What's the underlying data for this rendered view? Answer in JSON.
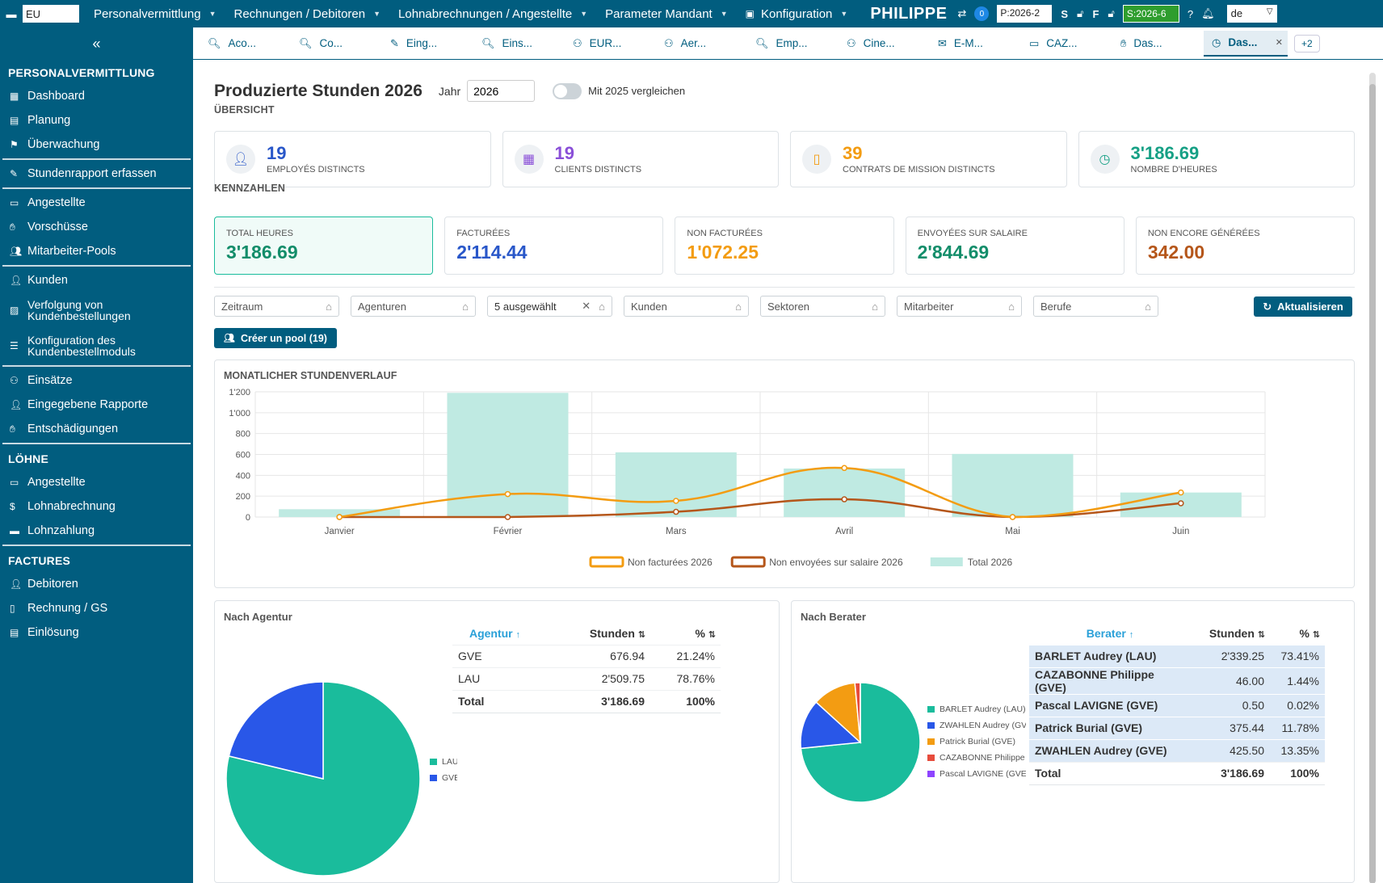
{
  "topbar": {
    "company_input": "EU",
    "menus": [
      {
        "label": "Personalvermittlung"
      },
      {
        "label": "Rechnungen / Debitoren"
      },
      {
        "label": "Lohnabrechnungen / Angestellte"
      },
      {
        "label": "Parameter Mandant"
      },
      {
        "label": "Konfiguration"
      }
    ],
    "brand": "PHILIPPE",
    "notif_count": "0",
    "period_p": "P:2026-2",
    "letter_s": "S",
    "letter_f": "F",
    "period_s": "S:2026-6",
    "language": "de"
  },
  "sidebar": {
    "collapse": "«",
    "sections": {
      "personal": "PERSONALVERMITTLUNG",
      "loehne": "LÖHNE",
      "factures": "FACTURES"
    },
    "items": {
      "dashboard": "Dashboard",
      "planung": "Planung",
      "ueberwachung": "Überwachung",
      "stundenrapport": "Stundenrapport erfassen",
      "angestellte": "Angestellte",
      "vorschuesse": "Vorschüsse",
      "pools": "Mitarbeiter-Pools",
      "kunden": "Kunden",
      "verfolgung": "Verfolgung von Kundenbestellungen",
      "konfiguration": "Konfiguration des Kundenbestellmoduls",
      "einsaetze": "Einsätze",
      "rapporte": "Eingegebene Rapporte",
      "entschaedigungen": "Entschädigungen",
      "angestellte2": "Angestellte",
      "lohnabrechnung": "Lohnabrechnung",
      "lohnzahlung": "Lohnzahlung",
      "debitoren": "Debitoren",
      "rechnung": "Rechnung / GS",
      "einloesung": "Einlösung"
    }
  },
  "tabs": [
    {
      "label": "Aco...",
      "icon": "search-icon"
    },
    {
      "label": "Co...",
      "icon": "search-icon"
    },
    {
      "label": "Eing...",
      "icon": "pencil-icon"
    },
    {
      "label": "Eins...",
      "icon": "search-icon"
    },
    {
      "label": "EUR...",
      "icon": "binoculars-icon"
    },
    {
      "label": "Aer...",
      "icon": "binoculars-icon"
    },
    {
      "label": "Emp...",
      "icon": "search-icon"
    },
    {
      "label": "Cine...",
      "icon": "binoculars-icon"
    },
    {
      "label": "E-M...",
      "icon": "envelope-icon"
    },
    {
      "label": "CAZ...",
      "icon": "id-card-icon"
    },
    {
      "label": "Das...",
      "icon": "hand-coin-icon"
    },
    {
      "label": "Das...",
      "icon": "clock-icon"
    }
  ],
  "tabs_more": "+2",
  "page": {
    "title": "Produzierte Stunden 2026",
    "year_label": "Jahr",
    "year_value": "2026",
    "compare_label": "Mit 2025 vergleichen"
  },
  "overview": {
    "label": "ÜBERSICHT",
    "cards": [
      {
        "value": "19",
        "caption": "EMPLOYÉS DISTINCTS",
        "color": "#2957c9"
      },
      {
        "value": "19",
        "caption": "CLIENTS DISTINCTS",
        "color": "#8a4fd8"
      },
      {
        "value": "39",
        "caption": "CONTRATS DE MISSION DISTINCTS",
        "color": "#f39c12"
      },
      {
        "value": "3'186.69",
        "caption": "NOMBRE D'HEURES",
        "color": "#16a085"
      }
    ]
  },
  "kennzahlen": {
    "label": "KENNZAHLEN",
    "cards": [
      {
        "caption": "TOTAL HEURES",
        "value": "3'186.69",
        "color": "#138d6a"
      },
      {
        "caption": "FACTURÉES",
        "value": "2'114.44",
        "color": "#2957c9"
      },
      {
        "caption": "NON FACTURÉES",
        "value": "1'072.25",
        "color": "#f39c12"
      },
      {
        "caption": "ENVOYÉES SUR SALAIRE",
        "value": "2'844.69",
        "color": "#138d6a"
      },
      {
        "caption": "NON ENCORE GÉNÉRÉES",
        "value": "342.00",
        "color": "#b5561a"
      }
    ]
  },
  "filters": {
    "zeitraum": "Zeitraum",
    "agenturen": "Agenturen",
    "selected": "5 ausgewählt",
    "kunden": "Kunden",
    "sektoren": "Sektoren",
    "mitarbeiter": "Mitarbeiter",
    "berufe": "Berufe",
    "refresh": "Aktualisieren",
    "pool": "Créer un pool (19)"
  },
  "chart_data": [
    {
      "type": "bar",
      "title": "MONATLICHER STUNDENVERLAUF",
      "categories": [
        "Janvier",
        "Février",
        "Mars",
        "Avril",
        "Mai",
        "Juin"
      ],
      "ylim": [
        0,
        1200
      ],
      "yticks": [
        "0",
        "200",
        "400",
        "600",
        "800",
        "1'000",
        "1'200"
      ],
      "grid": true,
      "legend_position": "bottom",
      "series": [
        {
          "name": "Non facturées 2026",
          "kind": "line",
          "color": "#f39c12",
          "values": [
            0,
            220,
            155,
            470,
            0,
            235
          ]
        },
        {
          "name": "Non envoyées sur salaire 2026",
          "kind": "line",
          "color": "#b5561a",
          "values": [
            0,
            0,
            50,
            170,
            0,
            132
          ]
        },
        {
          "name": "Total 2026",
          "kind": "bar",
          "color": "#bfeae2",
          "values": [
            75,
            1190,
            620,
            465,
            605,
            235
          ]
        }
      ]
    },
    {
      "type": "pie",
      "title": "Nach Agentur",
      "labels": [
        "LAU",
        "GVE"
      ],
      "values": [
        78.76,
        21.24
      ],
      "colors": [
        "#1abc9c",
        "#2957e8"
      ]
    },
    {
      "type": "pie",
      "title": "Nach Berater",
      "labels": [
        "BARLET Audrey (LAU)",
        "ZWAHLEN Audrey (GVE)",
        "Patrick Burial (GVE)",
        "CAZABONNE  Philippe (GV",
        "Pascal LAVIGNE (GVE)"
      ],
      "values": [
        73.41,
        13.35,
        11.78,
        1.44,
        0.02
      ],
      "colors": [
        "#1abc9c",
        "#2957e8",
        "#f39c12",
        "#e74c3c",
        "#8e44ff"
      ]
    }
  ],
  "agentur_table": {
    "headers": [
      "Agentur",
      "Stunden",
      "%"
    ],
    "rows": [
      [
        "GVE",
        "676.94",
        "21.24%"
      ],
      [
        "LAU",
        "2'509.75",
        "78.76%"
      ]
    ],
    "total": [
      "Total",
      "3'186.69",
      "100%"
    ]
  },
  "berater_table": {
    "headers": [
      "Berater",
      "Stunden",
      "%"
    ],
    "rows": [
      [
        "BARLET Audrey (LAU)",
        "2'339.25",
        "73.41%"
      ],
      [
        "CAZABONNE Philippe (GVE)",
        "46.00",
        "1.44%"
      ],
      [
        "Pascal LAVIGNE (GVE)",
        "0.50",
        "0.02%"
      ],
      [
        "Patrick Burial (GVE)",
        "375.44",
        "11.78%"
      ],
      [
        "ZWAHLEN Audrey (GVE)",
        "425.50",
        "13.35%"
      ]
    ],
    "total": [
      "Total",
      "3'186.69",
      "100%"
    ]
  }
}
